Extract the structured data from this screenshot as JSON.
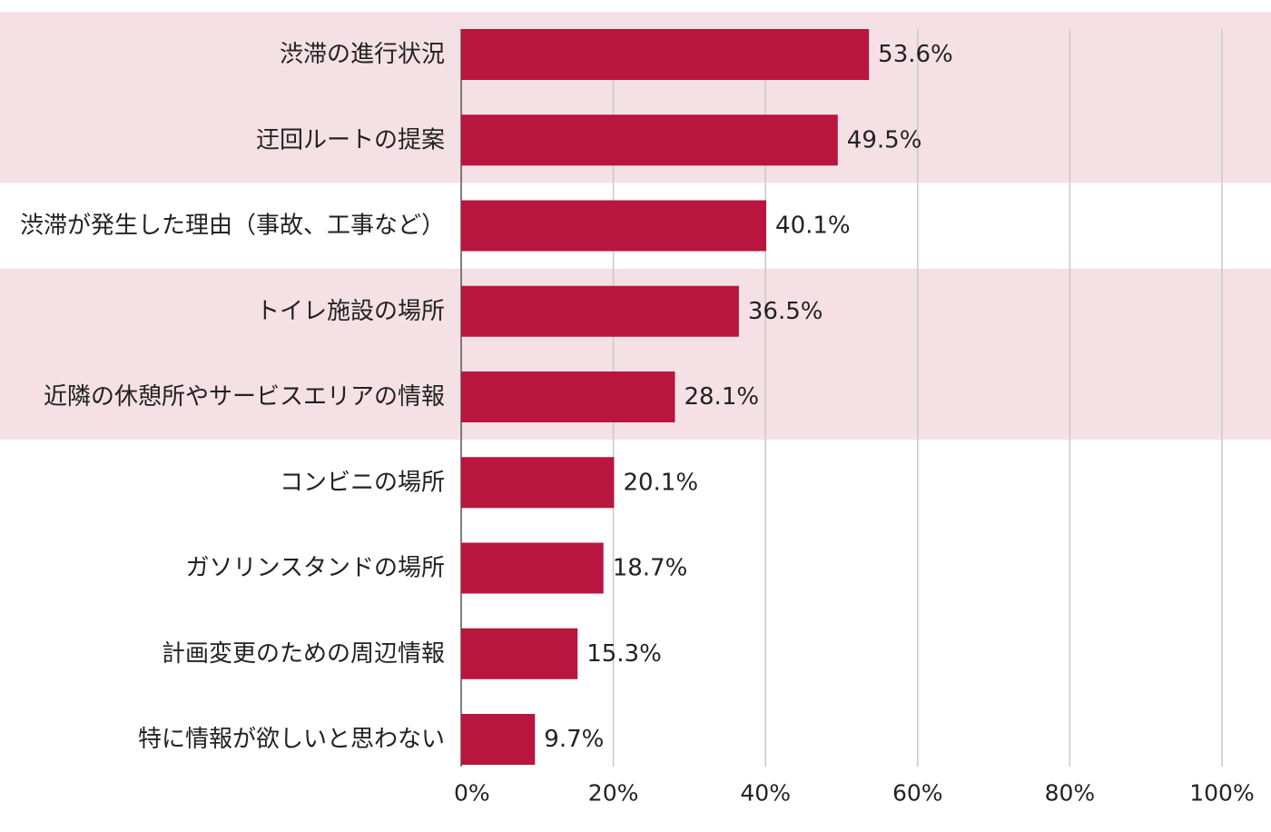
{
  "chart_data": {
    "type": "bar",
    "orientation": "horizontal",
    "categories": [
      "渋滞の進行状況",
      "迂回ルートの提案",
      "渋滞が発生した理由（事故、工事など）",
      "トイレ施設の場所",
      "近隣の休憩所やサービスエリアの情報",
      "コンビニの場所",
      "ガソリンスタンドの場所",
      "計画変更のための周辺情報",
      "特に情報が欲しいと思わない"
    ],
    "values": [
      53.6,
      49.5,
      40.1,
      36.5,
      28.1,
      20.1,
      18.7,
      15.3,
      9.7
    ],
    "value_labels": [
      "53.6%",
      "49.5%",
      "40.1%",
      "36.5%",
      "28.1%",
      "20.1%",
      "18.7%",
      "15.3%",
      "9.7%"
    ],
    "xlim": [
      0,
      100
    ],
    "x_ticks": [
      0,
      20,
      40,
      60,
      80,
      100
    ],
    "x_tick_labels": [
      "0%",
      "20%",
      "40%",
      "60%",
      "80%",
      "100%"
    ],
    "grid": "vertical",
    "highlighted_rows": [
      [
        0,
        1
      ],
      [
        3,
        4
      ]
    ],
    "colors": {
      "bar": "#b8163e",
      "highlight_band": "#f5e1e5",
      "grid": "#c8c8c8",
      "axis": "#555555",
      "text": "#222222"
    }
  }
}
